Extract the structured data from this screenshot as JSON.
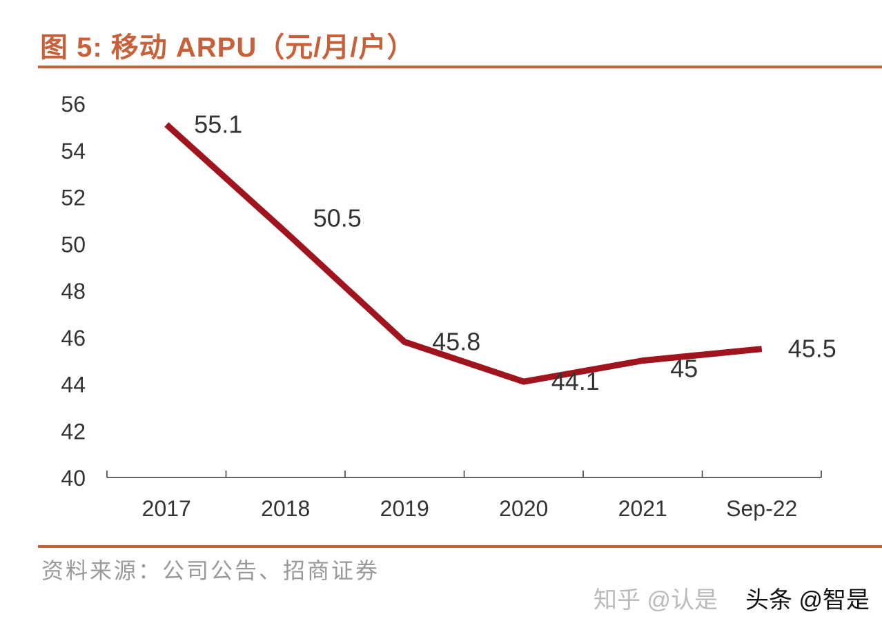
{
  "title": "图 5:  移动 ARPU（元/月/户）",
  "source": "资料来源：公司公告、招商证券",
  "watermarks": [
    "知乎 @认是",
    "头条 @智是"
  ],
  "colors": {
    "line": "#a0141e",
    "accent": "#c8603a",
    "text": "#333333"
  },
  "chart_data": {
    "type": "line",
    "title": "图 5:  移动 ARPU（元/月/户）",
    "categories": [
      "2017",
      "2018",
      "2019",
      "2020",
      "2021",
      "Sep-22"
    ],
    "series": [
      {
        "values": [
          55.1,
          50.5,
          45.8,
          44.1,
          45,
          45.5
        ]
      }
    ],
    "data_labels": [
      "55.1",
      "50.5",
      "45.8",
      "44.1",
      "45",
      "45.5"
    ],
    "ylim": [
      40,
      56
    ],
    "yticks": [
      "40",
      "42",
      "44",
      "46",
      "48",
      "50",
      "52",
      "54",
      "56"
    ],
    "grid": false,
    "legend": "none"
  }
}
